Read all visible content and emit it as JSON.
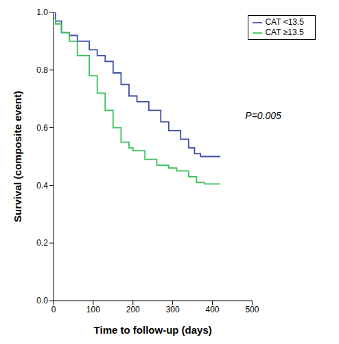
{
  "chart_data": {
    "type": "line",
    "line_style": "step",
    "xlabel": "Time to follow-up (days)",
    "ylabel": "Survival (composite event)",
    "annotations": [
      "P=0.005"
    ],
    "xlim": [
      0,
      500
    ],
    "xticks": [
      0,
      100,
      200,
      300,
      400,
      500
    ],
    "ylim": [
      0,
      1
    ],
    "yticks": [
      {
        "value": 0,
        "label": "0.0"
      },
      {
        "value": 0.2,
        "label": "0.2"
      },
      {
        "value": 0.4,
        "label": "0.4"
      },
      {
        "value": 0.6,
        "label": "0.6"
      },
      {
        "value": 0.8,
        "label": "0.8"
      },
      {
        "value": 1,
        "label": "1.0"
      }
    ],
    "legend": "upper right",
    "series": [
      {
        "name": "CAT <13.5",
        "color": "#3f4fa6",
        "x": [
          0,
          5,
          20,
          40,
          60,
          90,
          110,
          130,
          150,
          170,
          190,
          210,
          240,
          270,
          290,
          320,
          340,
          355,
          370,
          420
        ],
        "values": [
          1.0,
          0.97,
          0.93,
          0.92,
          0.9,
          0.87,
          0.85,
          0.83,
          0.79,
          0.75,
          0.71,
          0.69,
          0.66,
          0.62,
          0.59,
          0.56,
          0.53,
          0.51,
          0.5,
          0.5
        ]
      },
      {
        "name": "CAT ≥13.5",
        "color": "#38c25a",
        "x": [
          0,
          5,
          20,
          40,
          60,
          90,
          110,
          130,
          150,
          170,
          190,
          200,
          230,
          260,
          290,
          310,
          340,
          360,
          380,
          420
        ],
        "values": [
          0.98,
          0.96,
          0.93,
          0.9,
          0.85,
          0.78,
          0.72,
          0.66,
          0.6,
          0.55,
          0.53,
          0.52,
          0.49,
          0.47,
          0.46,
          0.45,
          0.43,
          0.41,
          0.405,
          0.405
        ]
      }
    ]
  }
}
